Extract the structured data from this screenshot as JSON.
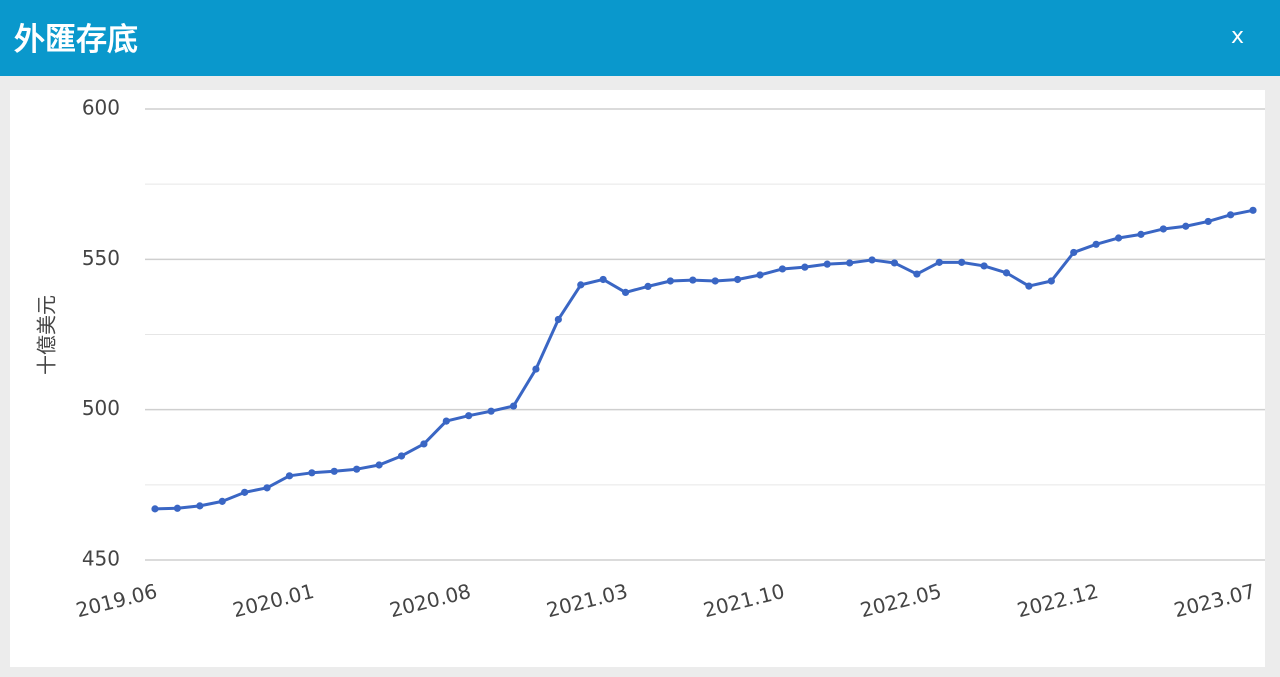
{
  "header": {
    "title": "外匯存底",
    "close": "x"
  },
  "chart_data": {
    "type": "line",
    "y_label": "十億美元",
    "categories": [
      "2019.06",
      null,
      null,
      null,
      null,
      null,
      null,
      "2020.01",
      null,
      null,
      null,
      null,
      null,
      null,
      "2020.08",
      null,
      null,
      null,
      null,
      null,
      null,
      "2021.03",
      null,
      null,
      null,
      null,
      null,
      null,
      "2021.10",
      null,
      null,
      null,
      null,
      null,
      null,
      "2022.05",
      null,
      null,
      null,
      null,
      null,
      null,
      "2022.12",
      null,
      null,
      null,
      null,
      null,
      null,
      "2023.07"
    ],
    "series": [
      {
        "name": "外匯存底",
        "color": "#3a66c4",
        "values": [
          467,
          467.2,
          468,
          469.5,
          472.5,
          474,
          478,
          479,
          479.5,
          480.2,
          481.6,
          484.6,
          488.6,
          496.2,
          498,
          499.5,
          501.2,
          513.5,
          530,
          541.5,
          543.3,
          539,
          541,
          542.8,
          543.1,
          542.8,
          543.3,
          544.8,
          546.8,
          547.4,
          548.4,
          548.8,
          549.8,
          548.8,
          545.1,
          549,
          549,
          547.8,
          545.5,
          541.1,
          542.8,
          552.3,
          555,
          557.1,
          558.3,
          560.1,
          561,
          562.6,
          564.8,
          566.3
        ]
      }
    ],
    "ylim": [
      450,
      600
    ],
    "yticks": [
      450,
      500,
      550,
      600
    ],
    "minor_yticks": [
      475,
      525,
      575
    ],
    "grid": true
  }
}
